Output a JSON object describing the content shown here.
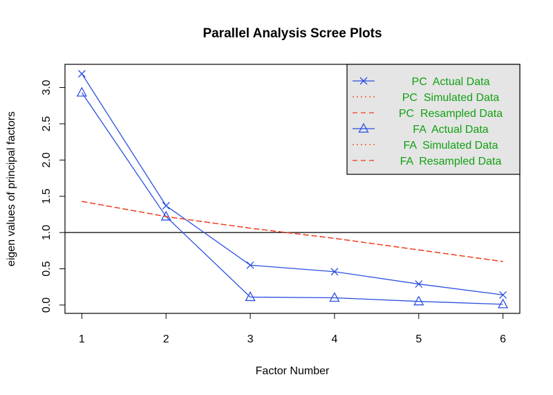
{
  "chart_data": {
    "type": "line",
    "title": "Parallel Analysis Scree Plots",
    "x_label": "Factor Number",
    "y_label": "eigen values of principal factors",
    "x": [
      1,
      2,
      3,
      4,
      5,
      6
    ],
    "series": [
      {
        "name": "PC  Actual Data",
        "color": "#2a4fe0",
        "linestyle": "solid",
        "marker": "x",
        "values": [
          3.19,
          1.37,
          0.55,
          0.46,
          0.29,
          0.14
        ]
      },
      {
        "name": "PC  Simulated Data",
        "color": "#f03a1a",
        "linestyle": "dotted",
        "marker": null,
        "values": [
          1.43,
          1.22,
          1.06,
          0.92,
          0.76,
          0.6
        ]
      },
      {
        "name": "PC  Resampled Data",
        "color": "#f03a1a",
        "linestyle": "dashed",
        "marker": null,
        "values": [
          1.43,
          1.22,
          1.06,
          0.92,
          0.76,
          0.6
        ]
      },
      {
        "name": "FA  Actual Data",
        "color": "#2a4fe0",
        "linestyle": "solid",
        "marker": "triangle",
        "values": [
          2.93,
          1.22,
          0.11,
          0.1,
          0.05,
          0.01
        ]
      },
      {
        "name": "FA  Simulated Data",
        "color": "#f03a1a",
        "linestyle": "dotted",
        "marker": null,
        "values": [
          1.43,
          1.22,
          1.06,
          0.92,
          0.76,
          0.6
        ]
      },
      {
        "name": "FA  Resampled Data",
        "color": "#f03a1a",
        "linestyle": "dashed",
        "marker": null,
        "values": [
          1.43,
          1.22,
          1.06,
          0.92,
          0.76,
          0.6
        ]
      }
    ],
    "hline": 1,
    "xlim": [
      0.8,
      6.2
    ],
    "xticks": [
      1,
      2,
      3,
      4,
      5,
      6
    ],
    "ylim": [
      -0.115,
      3.32
    ],
    "yticks": [
      {
        "value": 0,
        "label": "0.0"
      },
      0.5,
      {
        "value": 1,
        "label": "1.0"
      },
      1.5,
      {
        "value": 2,
        "label": "2.0"
      },
      2.5,
      {
        "value": 3,
        "label": "3.0"
      }
    ],
    "legend": "top-right",
    "legend_background": "#e5e5e5"
  }
}
